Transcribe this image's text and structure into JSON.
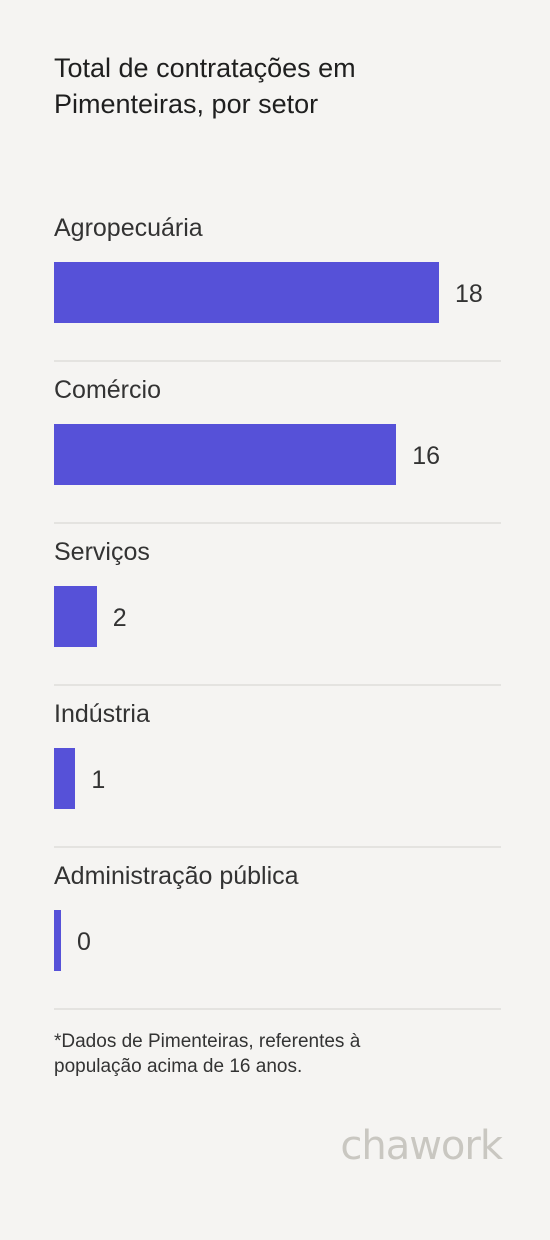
{
  "title_lines": [
    "Total de contratações em",
    "Pimenteiras, por setor"
  ],
  "chart_data": {
    "type": "bar",
    "orientation": "horizontal",
    "title": "Total de contratações em Pimenteiras, por setor",
    "categories": [
      "Agropecuária",
      "Comércio",
      "Serviços",
      "Indústria",
      "Administração pública"
    ],
    "values": [
      18,
      16,
      2,
      1,
      0
    ],
    "value_labels": [
      "18",
      "16",
      "2",
      "1",
      "0"
    ],
    "xlim": [
      0,
      18
    ],
    "bar_color": "#5651d8",
    "grid": false,
    "legend": "none"
  },
  "footnote_lines": [
    "*Dados de Pimenteiras, referentes à",
    "população acima de 16 anos."
  ],
  "logo_text": "chawork",
  "colors": {
    "background": "#f5f4f2",
    "bar": "#5651d8",
    "divider": "#e4e3e0",
    "logo": "#c9c7c1"
  }
}
